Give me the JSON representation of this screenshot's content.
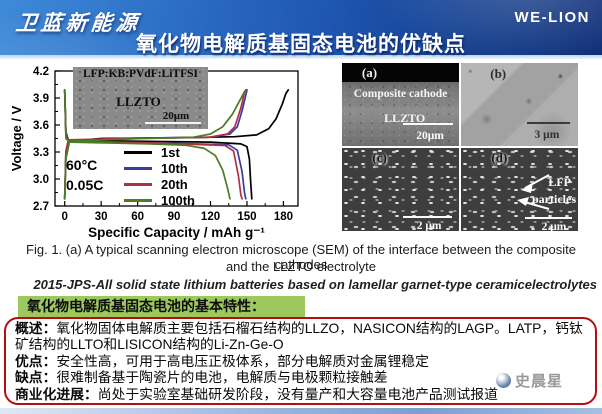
{
  "header": {
    "logo": "卫蓝新能源",
    "brand": "WE-LION",
    "title": "氧化物电解质基固态电池的优缺点"
  },
  "chart_data": {
    "type": "line",
    "title": "",
    "xlabel": "Specific Capacity / mAh g⁻¹",
    "ylabel": "Voltage / V",
    "xlim": [
      -8,
      192
    ],
    "ylim": [
      2.7,
      4.2
    ],
    "xticks": [
      0,
      30,
      60,
      90,
      120,
      150,
      180
    ],
    "yticks": [
      "2.7",
      "3.0",
      "3.3",
      "3.6",
      "3.9",
      "4.2"
    ],
    "grid": false,
    "legend_position": "inside lower center",
    "conditions": [
      "60°C",
      "0.05C"
    ],
    "inset": {
      "line1": "LFP:KB:PVdF:LiTFSI",
      "line2": "LLZTO",
      "scalebar": "20μm"
    },
    "series": [
      {
        "name": "1st",
        "color": "#000000",
        "charge": [
          [
            0,
            2.78
          ],
          [
            1,
            3.28
          ],
          [
            3,
            3.42
          ],
          [
            30,
            3.45
          ],
          [
            100,
            3.46
          ],
          [
            140,
            3.47
          ],
          [
            158,
            3.49
          ],
          [
            168,
            3.56
          ],
          [
            174,
            3.67
          ],
          [
            179,
            3.83
          ],
          [
            182,
            3.95
          ],
          [
            184,
            3.99
          ]
        ],
        "discharge": [
          [
            0,
            3.99
          ],
          [
            1,
            3.52
          ],
          [
            3,
            3.43
          ],
          [
            60,
            3.42
          ],
          [
            120,
            3.41
          ],
          [
            145,
            3.39
          ],
          [
            150,
            3.36
          ],
          [
            152,
            3.22
          ],
          [
            153,
            2.98
          ],
          [
            154,
            2.78
          ]
        ]
      },
      {
        "name": "10th",
        "color": "#3c3c9c",
        "charge": [
          [
            0,
            2.78
          ],
          [
            1,
            3.3
          ],
          [
            3,
            3.43
          ],
          [
            60,
            3.455
          ],
          [
            120,
            3.465
          ],
          [
            136,
            3.5
          ],
          [
            142,
            3.58
          ],
          [
            146,
            3.76
          ],
          [
            149,
            3.93
          ],
          [
            150,
            3.99
          ]
        ],
        "discharge": [
          [
            0,
            3.99
          ],
          [
            1,
            3.5
          ],
          [
            3,
            3.42
          ],
          [
            80,
            3.4
          ],
          [
            135,
            3.38
          ],
          [
            142,
            3.32
          ],
          [
            146,
            3.08
          ],
          [
            148,
            2.85
          ],
          [
            149,
            2.78
          ]
        ]
      },
      {
        "name": "20th",
        "color": "#b03042",
        "charge": [
          [
            0,
            2.78
          ],
          [
            1,
            3.31
          ],
          [
            3,
            3.435
          ],
          [
            60,
            3.452
          ],
          [
            118,
            3.462
          ],
          [
            134,
            3.5
          ],
          [
            140,
            3.58
          ],
          [
            145,
            3.79
          ],
          [
            148,
            3.96
          ],
          [
            149,
            3.99
          ]
        ],
        "discharge": [
          [
            0,
            3.99
          ],
          [
            1,
            3.49
          ],
          [
            3,
            3.42
          ],
          [
            80,
            3.398
          ],
          [
            132,
            3.372
          ],
          [
            139,
            3.31
          ],
          [
            143,
            3.03
          ],
          [
            145,
            2.82
          ],
          [
            146,
            2.78
          ]
        ]
      },
      {
        "name": "100th",
        "color": "#4b7d23",
        "charge": [
          [
            0,
            2.78
          ],
          [
            1,
            3.22
          ],
          [
            4,
            3.42
          ],
          [
            60,
            3.448
          ],
          [
            105,
            3.462
          ],
          [
            120,
            3.5
          ],
          [
            130,
            3.58
          ],
          [
            138,
            3.72
          ],
          [
            144,
            3.87
          ],
          [
            148,
            3.97
          ],
          [
            149,
            3.99
          ]
        ],
        "discharge": [
          [
            0,
            3.99
          ],
          [
            1,
            3.45
          ],
          [
            4,
            3.41
          ],
          [
            70,
            3.39
          ],
          [
            100,
            3.375
          ],
          [
            115,
            3.34
          ],
          [
            124,
            3.26
          ],
          [
            130,
            3.1
          ],
          [
            134,
            2.9
          ],
          [
            136,
            2.78
          ]
        ]
      }
    ]
  },
  "sem_panels": {
    "a": {
      "id": "(a)",
      "label1": "Composite cathode",
      "label2": "LLZTO",
      "scalebar": "20μm"
    },
    "b": {
      "id": "(b)",
      "scalebar": "3 μm"
    },
    "c": {
      "id": "(c)",
      "scalebar": "2 μm"
    },
    "d": {
      "id": "(d)",
      "label1": "LFP",
      "label2": "particles",
      "scalebar": "2 μm"
    }
  },
  "caption": {
    "line1": "Fig. 1. (a) A typical scanning electron microscope (SEM) of the interface between the composite cathodes",
    "line2": "and the LLZTO electrolyte",
    "source": "2015-JPS-All solid state lithium batteries based on lamellar garnet-type ceramicelectrolytes"
  },
  "features": {
    "heading": "氧化物电解质基固态电池的基本特性：",
    "items": [
      {
        "label": "概述：",
        "text": "氧化物固体电解质主要包括石榴石结构的LLZO，NASICON结构的LAGP。LATP，钙钛矿结构的LLTO和LISICON结构的Li-Zn-Ge-O"
      },
      {
        "label": "优点：",
        "text": "安全性高，可用于高电压正极体系，部分电解质对金属锂稳定"
      },
      {
        "label": "缺点：",
        "text": "很难制备基于陶瓷片的电池，电解质与电极颗粒接触差"
      },
      {
        "label": "商业化进展：",
        "text": "尚处于实验室基础研发阶段，没有量产和大容量电池产品测试报道"
      }
    ]
  },
  "watermark": {
    "text": "史晨星"
  },
  "colors": {
    "banner_blue": "#1e55b0",
    "heading_green": "#9cc85e",
    "box_border_red": "#b40f0f",
    "title_text": "#ffffff"
  }
}
